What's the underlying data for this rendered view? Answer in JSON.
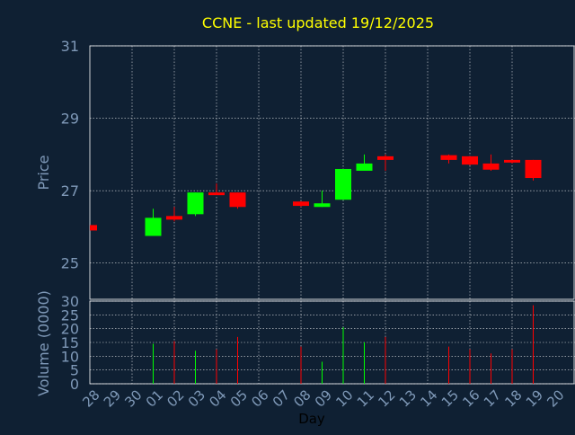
{
  "chart_data": {
    "type": "candlestick",
    "title": "CCNE - last updated 19/12/2025",
    "price_panel": {
      "ylabel": "Price",
      "ylim": [
        24,
        31
      ],
      "yticks": [
        25,
        27,
        29,
        31
      ]
    },
    "volume_panel": {
      "ylabel": "Volume (0000)",
      "ylim": [
        0,
        30
      ],
      "yticks": [
        0,
        5,
        10,
        15,
        20,
        25,
        30
      ]
    },
    "xlabel": "Day",
    "x_labels": [
      "28",
      "29",
      "30",
      "01",
      "02",
      "03",
      "04",
      "05",
      "06",
      "07",
      "08",
      "09",
      "10",
      "11",
      "12",
      "13",
      "14",
      "15",
      "16",
      "17",
      "18",
      "19",
      "20"
    ],
    "grid": true,
    "candles": [
      {
        "day": "28",
        "open": 26.05,
        "high": 26.05,
        "low": 25.9,
        "close": 25.9,
        "volume": 0,
        "dir": "down"
      },
      {
        "day": "01",
        "open": 25.75,
        "high": 26.5,
        "low": 25.75,
        "close": 26.25,
        "volume": 14.5,
        "dir": "up"
      },
      {
        "day": "02",
        "open": 26.3,
        "high": 26.55,
        "low": 26.15,
        "close": 26.2,
        "volume": 15.5,
        "dir": "down"
      },
      {
        "day": "03",
        "open": 26.35,
        "high": 26.95,
        "low": 26.3,
        "close": 26.95,
        "volume": 12,
        "dir": "up"
      },
      {
        "day": "04",
        "open": 26.95,
        "high": 27.2,
        "low": 26.9,
        "close": 26.92,
        "volume": 12.5,
        "dir": "down"
      },
      {
        "day": "05",
        "open": 26.95,
        "high": 26.95,
        "low": 26.5,
        "close": 26.55,
        "volume": 17,
        "dir": "down"
      },
      {
        "day": "08",
        "open": 26.7,
        "high": 26.7,
        "low": 26.55,
        "close": 26.58,
        "volume": 13.5,
        "dir": "down"
      },
      {
        "day": "09",
        "open": 26.55,
        "high": 27.0,
        "low": 26.55,
        "close": 26.65,
        "volume": 8,
        "dir": "up"
      },
      {
        "day": "10",
        "open": 26.75,
        "high": 27.6,
        "low": 26.75,
        "close": 27.6,
        "volume": 20.5,
        "dir": "up"
      },
      {
        "day": "11",
        "open": 27.55,
        "high": 28.0,
        "low": 27.55,
        "close": 27.75,
        "volume": 15,
        "dir": "up"
      },
      {
        "day": "12",
        "open": 27.95,
        "high": 28.0,
        "low": 27.55,
        "close": 27.85,
        "volume": 17,
        "dir": "down"
      },
      {
        "day": "15",
        "open": 27.98,
        "high": 28.0,
        "low": 27.75,
        "close": 27.85,
        "volume": 13.5,
        "dir": "down"
      },
      {
        "day": "16",
        "open": 27.95,
        "high": 27.95,
        "low": 27.7,
        "close": 27.72,
        "volume": 12.5,
        "dir": "down"
      },
      {
        "day": "17",
        "open": 27.75,
        "high": 28.0,
        "low": 27.55,
        "close": 27.58,
        "volume": 11,
        "dir": "down"
      },
      {
        "day": "18",
        "open": 27.85,
        "high": 27.85,
        "low": 27.75,
        "close": 27.78,
        "volume": 12.5,
        "dir": "down"
      },
      {
        "day": "19",
        "open": 27.85,
        "high": 27.85,
        "low": 27.28,
        "close": 27.35,
        "volume": 28.5,
        "dir": "down"
      }
    ]
  },
  "colors": {
    "background": "#0f2033",
    "grid": "#ffffff",
    "title": "#ffff00",
    "axis_label": "#7f99b8",
    "tick_label": "#7f99b8",
    "up": "#00ff00",
    "down": "#ff0000",
    "axis_title_day": "#000000"
  }
}
